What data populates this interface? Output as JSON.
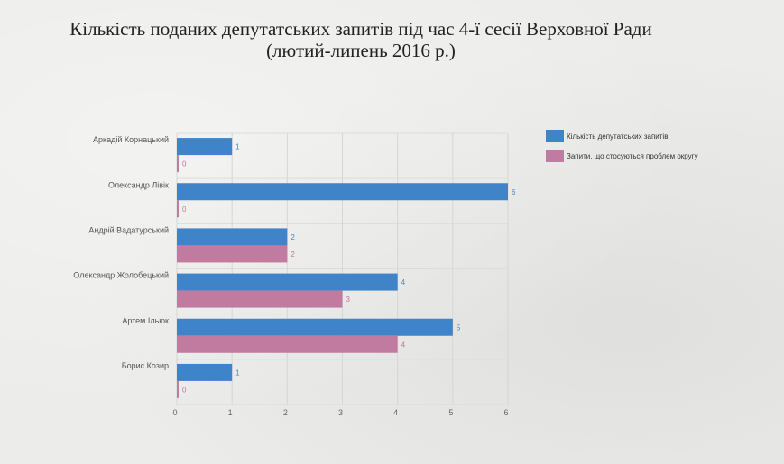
{
  "chart_data": {
    "type": "bar",
    "orientation": "horizontal",
    "title": "Кількість поданих депутатських запитів під час 4-ї сесії Верховної Ради (лютий-липень 2016 р.)",
    "categories": [
      "Аркадій Корнацький",
      "Олександр Лівік",
      "Андрій Вадатурський",
      "Олександр Жолобецький",
      "Артем Ільюк",
      "Борис Козир"
    ],
    "series": [
      {
        "name": "Кількість депутатських запитів",
        "color": "#3f83c8",
        "values": [
          1,
          6,
          2,
          4,
          5,
          1
        ]
      },
      {
        "name": "Запити, що стосуються проблем округу",
        "color": "#c27ba0",
        "values": [
          0,
          0,
          2,
          3,
          4,
          0
        ]
      }
    ],
    "xlim": [
      0,
      6
    ],
    "xticks": [
      "0",
      "1",
      "2",
      "3",
      "4",
      "5",
      "6"
    ],
    "grid": true,
    "legend": "top-right",
    "xlabel": "",
    "ylabel": ""
  }
}
